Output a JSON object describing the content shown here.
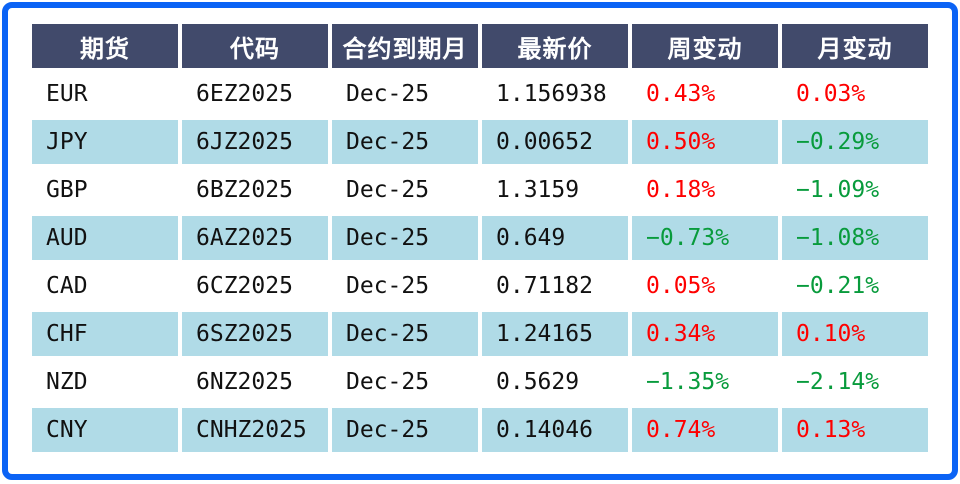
{
  "colors": {
    "frame_border": "#0b63f5",
    "header_bg": "#414a6b",
    "header_text": "#ffffff",
    "row_plain_bg": "#ffffff",
    "row_stripe_bg": "#b0dbe7",
    "body_text": "#111111",
    "positive_change": "#fe0000",
    "negative_change": "#089b3c"
  },
  "chart_data": {
    "type": "table",
    "columns": [
      "期货",
      "代码",
      "合约到期月",
      "最新价",
      "周变动",
      "月变动"
    ],
    "column_keys": [
      "futures",
      "code",
      "expiry_month",
      "last_price",
      "week_change",
      "month_change"
    ],
    "rows": [
      {
        "futures": "EUR",
        "code": "6EZ2025",
        "expiry_month": "Dec-25",
        "last_price": "1.156938",
        "week_change": "0.43%",
        "month_change": "0.03%"
      },
      {
        "futures": "JPY",
        "code": "6JZ2025",
        "expiry_month": "Dec-25",
        "last_price": "0.00652",
        "week_change": "0.50%",
        "month_change": "−0.29%"
      },
      {
        "futures": "GBP",
        "code": "6BZ2025",
        "expiry_month": "Dec-25",
        "last_price": "1.3159",
        "week_change": "0.18%",
        "month_change": "−1.09%"
      },
      {
        "futures": "AUD",
        "code": "6AZ2025",
        "expiry_month": "Dec-25",
        "last_price": "0.649",
        "week_change": "−0.73%",
        "month_change": "−1.08%"
      },
      {
        "futures": "CAD",
        "code": "6CZ2025",
        "expiry_month": "Dec-25",
        "last_price": "0.71182",
        "week_change": "0.05%",
        "month_change": "−0.21%"
      },
      {
        "futures": "CHF",
        "code": "6SZ2025",
        "expiry_month": "Dec-25",
        "last_price": "1.24165",
        "week_change": "0.34%",
        "month_change": "0.10%"
      },
      {
        "futures": "NZD",
        "code": "6NZ2025",
        "expiry_month": "Dec-25",
        "last_price": "0.5629",
        "week_change": "−1.35%",
        "month_change": "−2.14%"
      },
      {
        "futures": "CNY",
        "code": "CNHZ2025",
        "expiry_month": "Dec-25",
        "last_price": "0.14046",
        "week_change": "0.74%",
        "month_change": "0.13%"
      }
    ],
    "numeric_rows": [
      {
        "futures": "EUR",
        "last_price": 1.156938,
        "week_change_pct": 0.43,
        "month_change_pct": 0.03
      },
      {
        "futures": "JPY",
        "last_price": 0.00652,
        "week_change_pct": 0.5,
        "month_change_pct": -0.29
      },
      {
        "futures": "GBP",
        "last_price": 1.3159,
        "week_change_pct": 0.18,
        "month_change_pct": -1.09
      },
      {
        "futures": "AUD",
        "last_price": 0.649,
        "week_change_pct": -0.73,
        "month_change_pct": -1.08
      },
      {
        "futures": "CAD",
        "last_price": 0.71182,
        "week_change_pct": 0.05,
        "month_change_pct": -0.21
      },
      {
        "futures": "CHF",
        "last_price": 1.24165,
        "week_change_pct": 0.34,
        "month_change_pct": 0.1
      },
      {
        "futures": "NZD",
        "last_price": 0.5629,
        "week_change_pct": -1.35,
        "month_change_pct": -2.14
      },
      {
        "futures": "CNY",
        "last_price": 0.14046,
        "week_change_pct": 0.74,
        "month_change_pct": 0.13
      }
    ],
    "layout": {
      "striped_rows": "even rows (JPY, AUD, CHF, CNY) have light-blue background",
      "change_color_rule": "positive values red, negative values green"
    }
  }
}
